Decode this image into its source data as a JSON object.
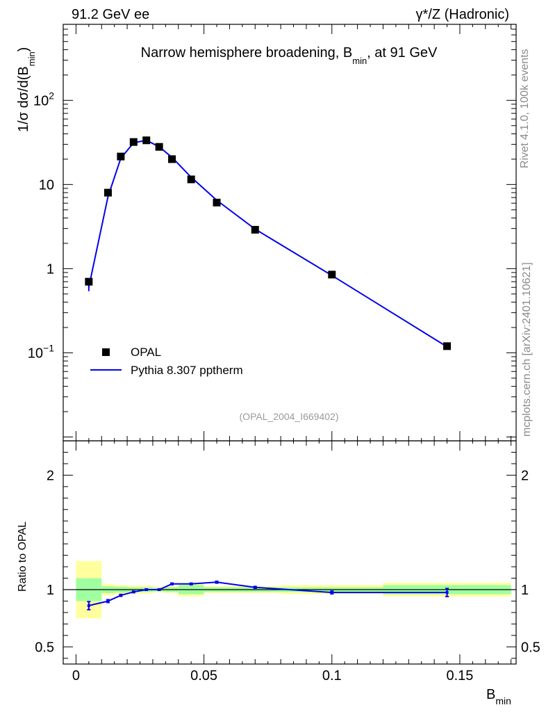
{
  "header": {
    "left": "91.2 GeV ee",
    "right": "γ*/Z (Hadronic)"
  },
  "side_labels": {
    "rivet": "Rivet 4.1.0,  100k events",
    "mcplots": "mcplots.cern.ch [arXiv:2401.10621]"
  },
  "chart_data": {
    "type": "line",
    "title_main": "Narrow hemisphere broadening, B",
    "title_sub": "min",
    "title_tail": ", at 91 GeV",
    "analysis_tag": "(OPAL_2004_I669402)",
    "ylabel_main": "1/σ  dσ/d(B",
    "ylabel_sub": "min",
    "ylabel_tail": ")",
    "xlabel_main": "B",
    "xlabel_sub": "min",
    "ratio_ylabel": "Ratio to OPAL",
    "xlim": [
      -0.005,
      0.172
    ],
    "ylim_main_log": [
      0.009,
      800
    ],
    "ylim_ratio": [
      0.35,
      2.3
    ],
    "x_ticks": [
      "0",
      "0.05",
      "0.1",
      "0.15"
    ],
    "x_tick_values": [
      0,
      0.05,
      0.1,
      0.15
    ],
    "main_y_ticks": [
      {
        "v": 0.1,
        "b": "10",
        "e": "−1"
      },
      {
        "v": 1,
        "b": "1",
        "e": ""
      },
      {
        "v": 10,
        "b": "10",
        "e": ""
      },
      {
        "v": 100,
        "b": "10",
        "e": "2"
      }
    ],
    "ratio_y_ticks": [
      {
        "v": 0.5,
        "t": "0.5"
      },
      {
        "v": 1,
        "t": "1"
      },
      {
        "v": 2,
        "t": "2"
      }
    ],
    "legend": [
      {
        "name": "OPAL",
        "kind": "marker"
      },
      {
        "name": "Pythia 8.307 pptherm",
        "kind": "line"
      }
    ],
    "colors": {
      "data": "#000000",
      "mc": "#0000ee",
      "band_inner": "#a0ffa0",
      "band_outer": "#ffff9e"
    },
    "data_points": [
      {
        "x": 0.005,
        "y": 0.7,
        "xlo": 0.0,
        "xhi": 0.01,
        "stat": 0.1,
        "tot": 0.25
      },
      {
        "x": 0.0125,
        "y": 8.0,
        "xlo": 0.01,
        "xhi": 0.015,
        "stat": 0.03,
        "tot": 0.05
      },
      {
        "x": 0.0175,
        "y": 21.5,
        "xlo": 0.015,
        "xhi": 0.02,
        "stat": 0.025,
        "tot": 0.04
      },
      {
        "x": 0.0225,
        "y": 32.0,
        "xlo": 0.02,
        "xhi": 0.025,
        "stat": 0.02,
        "tot": 0.035
      },
      {
        "x": 0.0275,
        "y": 33.5,
        "xlo": 0.025,
        "xhi": 0.03,
        "stat": 0.02,
        "tot": 0.035
      },
      {
        "x": 0.0325,
        "y": 28.0,
        "xlo": 0.03,
        "xhi": 0.035,
        "stat": 0.015,
        "tot": 0.025
      },
      {
        "x": 0.0375,
        "y": 20.0,
        "xlo": 0.035,
        "xhi": 0.04,
        "stat": 0.02,
        "tot": 0.03
      },
      {
        "x": 0.045,
        "y": 11.5,
        "xlo": 0.04,
        "xhi": 0.05,
        "stat": 0.04,
        "tot": 0.06
      },
      {
        "x": 0.055,
        "y": 6.1,
        "xlo": 0.05,
        "xhi": 0.06,
        "stat": 0.02,
        "tot": 0.03
      },
      {
        "x": 0.07,
        "y": 2.9,
        "xlo": 0.06,
        "xhi": 0.08,
        "stat": 0.02,
        "tot": 0.03
      },
      {
        "x": 0.1,
        "y": 0.85,
        "xlo": 0.08,
        "xhi": 0.12,
        "stat": 0.02,
        "tot": 0.04
      },
      {
        "x": 0.145,
        "y": 0.12,
        "xlo": 0.12,
        "xhi": 0.17,
        "stat": 0.04,
        "tot": 0.06
      }
    ],
    "mc_points": [
      {
        "x": 0.005,
        "y": 0.6,
        "err": 0.06
      },
      {
        "x": 0.0125,
        "y": 7.2,
        "err": 0.1
      },
      {
        "x": 0.0175,
        "y": 20.5,
        "err": 0.2
      },
      {
        "x": 0.0225,
        "y": 31.3,
        "err": 0.2
      },
      {
        "x": 0.0275,
        "y": 33.5,
        "err": 0.2
      },
      {
        "x": 0.0325,
        "y": 28.1,
        "err": 0.2
      },
      {
        "x": 0.0375,
        "y": 21.0,
        "err": 0.2
      },
      {
        "x": 0.045,
        "y": 12.2,
        "err": 0.1
      },
      {
        "x": 0.055,
        "y": 6.5,
        "err": 0.06
      },
      {
        "x": 0.07,
        "y": 2.95,
        "err": 0.03
      },
      {
        "x": 0.1,
        "y": 0.83,
        "err": 0.01
      },
      {
        "x": 0.145,
        "y": 0.118,
        "err": 0.004
      }
    ],
    "ratio_points": [
      {
        "x": 0.005,
        "r": 0.86,
        "err": 0.035
      },
      {
        "x": 0.0125,
        "r": 0.9,
        "err": 0.012
      },
      {
        "x": 0.0175,
        "r": 0.95,
        "err": 0.008
      },
      {
        "x": 0.0225,
        "r": 0.98,
        "err": 0.006
      },
      {
        "x": 0.0275,
        "r": 1.0,
        "err": 0.006
      },
      {
        "x": 0.0325,
        "r": 1.0,
        "err": 0.006
      },
      {
        "x": 0.0375,
        "r": 1.05,
        "err": 0.007
      },
      {
        "x": 0.045,
        "r": 1.05,
        "err": 0.006
      },
      {
        "x": 0.055,
        "r": 1.065,
        "err": 0.008
      },
      {
        "x": 0.07,
        "r": 1.02,
        "err": 0.008
      },
      {
        "x": 0.1,
        "r": 0.975,
        "err": 0.012
      },
      {
        "x": 0.145,
        "r": 0.975,
        "err": 0.035
      }
    ]
  }
}
